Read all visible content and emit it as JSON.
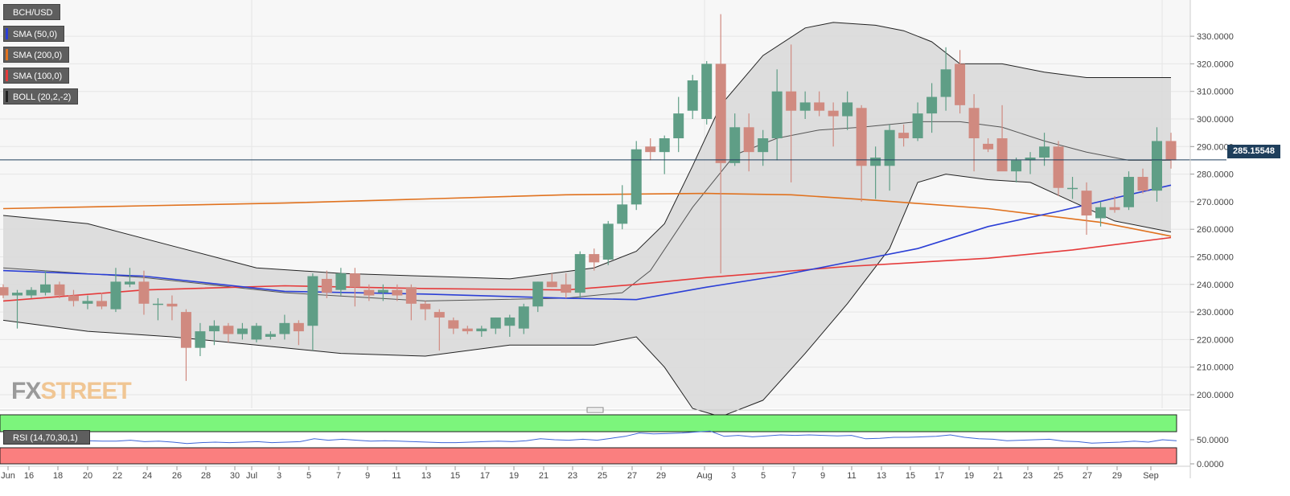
{
  "legend": {
    "pair": "BCH/USD",
    "indicators": [
      {
        "label": "SMA (50,0)",
        "color": "#2b3fd6"
      },
      {
        "label": "SMA (200,0)",
        "color": "#e0721f"
      },
      {
        "label": "SMA (100,0)",
        "color": "#e53a3a"
      },
      {
        "label": "BOLL (20,2,-2)",
        "color": "#222222"
      }
    ]
  },
  "logo": {
    "fx": "FX",
    "street": "STREET"
  },
  "last_price": "285.15548",
  "rsi_legend": "RSI (14,70,30,1)",
  "colors": {
    "up": "#5f9e86",
    "down": "#d08a80",
    "band_fill": "#d9d9d9",
    "overbought": "#7cf57c",
    "oversold": "#fa7f7f",
    "rsi_line": "#3d66d6"
  },
  "chart_data": {
    "type": "candlestick",
    "pair": "BCH/USD",
    "y_ticks": [
      "330.0000",
      "320.0000",
      "310.0000",
      "300.0000",
      "290.0000",
      "280.0000",
      "270.0000",
      "260.0000",
      "250.0000",
      "240.0000",
      "230.0000",
      "220.0000",
      "210.0000",
      "200.0000"
    ],
    "ylim": [
      192,
      338
    ],
    "x_ticks": [
      "Jun",
      "16",
      "18",
      "20",
      "22",
      "24",
      "26",
      "28",
      "30",
      "Jul",
      "3",
      "5",
      "7",
      "9",
      "11",
      "13",
      "15",
      "17",
      "19",
      "21",
      "23",
      "25",
      "27",
      "29",
      "Aug",
      "3",
      "5",
      "7",
      "9",
      "11",
      "13",
      "15",
      "17",
      "19",
      "21",
      "23",
      "25",
      "27",
      "29",
      "Sep"
    ],
    "candles": [
      {
        "o": 239,
        "h": 240,
        "l": 235,
        "c": 236
      },
      {
        "o": 236,
        "h": 238,
        "l": 224,
        "c": 237
      },
      {
        "o": 236,
        "h": 239,
        "l": 235,
        "c": 238
      },
      {
        "o": 237,
        "h": 245,
        "l": 236,
        "c": 240
      },
      {
        "o": 240,
        "h": 241,
        "l": 235,
        "c": 236
      },
      {
        "o": 236,
        "h": 238,
        "l": 232,
        "c": 234
      },
      {
        "o": 233,
        "h": 236,
        "l": 231,
        "c": 234
      },
      {
        "o": 234,
        "h": 237,
        "l": 231,
        "c": 232
      },
      {
        "o": 231,
        "h": 246,
        "l": 230,
        "c": 241
      },
      {
        "o": 240,
        "h": 246,
        "l": 239,
        "c": 241
      },
      {
        "o": 241,
        "h": 245,
        "l": 229,
        "c": 233
      },
      {
        "o": 233,
        "h": 235,
        "l": 227,
        "c": 233
      },
      {
        "o": 233,
        "h": 236,
        "l": 227,
        "c": 232
      },
      {
        "o": 230,
        "h": 231,
        "l": 205,
        "c": 217
      },
      {
        "o": 217,
        "h": 226,
        "l": 214,
        "c": 223
      },
      {
        "o": 223,
        "h": 227,
        "l": 218,
        "c": 225
      },
      {
        "o": 225,
        "h": 226,
        "l": 219,
        "c": 222
      },
      {
        "o": 222,
        "h": 226,
        "l": 220,
        "c": 224
      },
      {
        "o": 220,
        "h": 226,
        "l": 219,
        "c": 225
      },
      {
        "o": 221,
        "h": 223,
        "l": 220,
        "c": 222
      },
      {
        "o": 222,
        "h": 229,
        "l": 220,
        "c": 226
      },
      {
        "o": 226,
        "h": 227,
        "l": 218,
        "c": 223
      },
      {
        "o": 225,
        "h": 244,
        "l": 216,
        "c": 243
      },
      {
        "o": 242,
        "h": 245,
        "l": 235,
        "c": 237
      },
      {
        "o": 238,
        "h": 246,
        "l": 236,
        "c": 244
      },
      {
        "o": 244,
        "h": 246,
        "l": 232,
        "c": 239
      },
      {
        "o": 238,
        "h": 240,
        "l": 234,
        "c": 236
      },
      {
        "o": 237,
        "h": 240,
        "l": 234,
        "c": 238
      },
      {
        "o": 238,
        "h": 240,
        "l": 234,
        "c": 236
      },
      {
        "o": 239,
        "h": 240,
        "l": 227,
        "c": 233
      },
      {
        "o": 233,
        "h": 234,
        "l": 227,
        "c": 231
      },
      {
        "o": 230,
        "h": 231,
        "l": 216,
        "c": 228
      },
      {
        "o": 227,
        "h": 228,
        "l": 222,
        "c": 224
      },
      {
        "o": 224,
        "h": 225,
        "l": 222,
        "c": 223
      },
      {
        "o": 223,
        "h": 225,
        "l": 221,
        "c": 224
      },
      {
        "o": 224,
        "h": 228,
        "l": 222,
        "c": 228
      },
      {
        "o": 225,
        "h": 229,
        "l": 221,
        "c": 228
      },
      {
        "o": 224,
        "h": 233,
        "l": 222,
        "c": 232
      },
      {
        "o": 232,
        "h": 241,
        "l": 230,
        "c": 241
      },
      {
        "o": 241,
        "h": 244,
        "l": 239,
        "c": 239
      },
      {
        "o": 240,
        "h": 244,
        "l": 235,
        "c": 237
      },
      {
        "o": 237,
        "h": 252,
        "l": 235,
        "c": 251
      },
      {
        "o": 251,
        "h": 253,
        "l": 245,
        "c": 248
      },
      {
        "o": 249,
        "h": 263,
        "l": 247,
        "c": 262
      },
      {
        "o": 262,
        "h": 276,
        "l": 260,
        "c": 269
      },
      {
        "o": 269,
        "h": 292,
        "l": 267,
        "c": 289
      },
      {
        "o": 290,
        "h": 293,
        "l": 285,
        "c": 288
      },
      {
        "o": 288,
        "h": 294,
        "l": 280,
        "c": 293
      },
      {
        "o": 293,
        "h": 308,
        "l": 288,
        "c": 302
      },
      {
        "o": 303,
        "h": 316,
        "l": 300,
        "c": 314
      },
      {
        "o": 300,
        "h": 321,
        "l": 298,
        "c": 320
      },
      {
        "o": 320,
        "h": 338,
        "l": 244,
        "c": 284
      },
      {
        "o": 284,
        "h": 302,
        "l": 283,
        "c": 297
      },
      {
        "o": 297,
        "h": 302,
        "l": 281,
        "c": 288
      },
      {
        "o": 288,
        "h": 296,
        "l": 283,
        "c": 293
      },
      {
        "o": 293,
        "h": 318,
        "l": 285,
        "c": 310
      },
      {
        "o": 310,
        "h": 327,
        "l": 277,
        "c": 303
      },
      {
        "o": 303,
        "h": 310,
        "l": 300,
        "c": 306
      },
      {
        "o": 306,
        "h": 310,
        "l": 301,
        "c": 303
      },
      {
        "o": 303,
        "h": 306,
        "l": 290,
        "c": 301
      },
      {
        "o": 301,
        "h": 310,
        "l": 296,
        "c": 306
      },
      {
        "o": 304,
        "h": 305,
        "l": 270,
        "c": 283
      },
      {
        "o": 283,
        "h": 290,
        "l": 271,
        "c": 286
      },
      {
        "o": 283,
        "h": 298,
        "l": 274,
        "c": 296
      },
      {
        "o": 295,
        "h": 298,
        "l": 290,
        "c": 293
      },
      {
        "o": 293,
        "h": 306,
        "l": 292,
        "c": 302
      },
      {
        "o": 302,
        "h": 313,
        "l": 295,
        "c": 308
      },
      {
        "o": 308,
        "h": 326,
        "l": 303,
        "c": 318
      },
      {
        "o": 320,
        "h": 325,
        "l": 302,
        "c": 305
      },
      {
        "o": 304,
        "h": 309,
        "l": 281,
        "c": 293
      },
      {
        "o": 291,
        "h": 293,
        "l": 288,
        "c": 289
      },
      {
        "o": 293,
        "h": 305,
        "l": 282,
        "c": 281
      },
      {
        "o": 281,
        "h": 286,
        "l": 277,
        "c": 285
      },
      {
        "o": 285,
        "h": 288,
        "l": 280,
        "c": 286
      },
      {
        "o": 286,
        "h": 295,
        "l": 283,
        "c": 290
      },
      {
        "o": 290,
        "h": 292,
        "l": 272,
        "c": 275
      },
      {
        "o": 275,
        "h": 279,
        "l": 271,
        "c": 275
      },
      {
        "o": 274,
        "h": 277,
        "l": 258,
        "c": 265
      },
      {
        "o": 264,
        "h": 270,
        "l": 261,
        "c": 268
      },
      {
        "o": 268,
        "h": 272,
        "l": 266,
        "c": 267
      },
      {
        "o": 268,
        "h": 281,
        "l": 267,
        "c": 279
      },
      {
        "o": 279,
        "h": 282,
        "l": 273,
        "c": 274
      },
      {
        "o": 274,
        "h": 297,
        "l": 270,
        "c": 292
      },
      {
        "o": 292,
        "h": 295,
        "l": 282,
        "c": 285
      }
    ],
    "series": [
      {
        "name": "SMA (50,0)",
        "points": [
          [
            0,
            245
          ],
          [
            10,
            243
          ],
          [
            20,
            237.5
          ],
          [
            30,
            236.5
          ],
          [
            40,
            235
          ],
          [
            45,
            234.5
          ],
          [
            50,
            239
          ],
          [
            55,
            243
          ],
          [
            60,
            248
          ],
          [
            65,
            253
          ],
          [
            70,
            261
          ],
          [
            75,
            266.5
          ],
          [
            80,
            272.5
          ],
          [
            83,
            276
          ]
        ]
      },
      {
        "name": "SMA (200,0)",
        "points": [
          [
            0,
            267.5
          ],
          [
            10,
            268.5
          ],
          [
            20,
            269.5
          ],
          [
            30,
            271
          ],
          [
            40,
            272.5
          ],
          [
            50,
            273
          ],
          [
            56,
            272.5
          ],
          [
            62,
            270.5
          ],
          [
            70,
            267.5
          ],
          [
            78,
            262.5
          ],
          [
            83,
            257.5
          ]
        ]
      },
      {
        "name": "SMA (100,0)",
        "points": [
          [
            0,
            234
          ],
          [
            10,
            238
          ],
          [
            20,
            239.5
          ],
          [
            30,
            238.5
          ],
          [
            40,
            238
          ],
          [
            45,
            240
          ],
          [
            50,
            242.5
          ],
          [
            60,
            246.5
          ],
          [
            70,
            249.5
          ],
          [
            76,
            252.5
          ],
          [
            83,
            257
          ]
        ]
      },
      {
        "name": "BOLL (20,2,-2)",
        "points": [
          [
            0,
            246
          ],
          [
            10,
            242.5
          ],
          [
            20,
            237
          ],
          [
            30,
            234
          ],
          [
            40,
            235
          ],
          [
            44,
            237
          ],
          [
            46,
            245
          ],
          [
            49,
            268
          ],
          [
            52,
            287
          ],
          [
            55,
            293
          ],
          [
            58,
            296
          ],
          [
            61,
            297
          ],
          [
            65,
            299
          ],
          [
            68,
            299
          ],
          [
            71,
            297
          ],
          [
            74,
            292
          ],
          [
            77,
            288
          ],
          [
            80,
            285
          ],
          [
            83,
            285
          ]
        ]
      },
      {
        "name": "Bollinger upper",
        "points": [
          [
            0,
            265
          ],
          [
            6,
            262
          ],
          [
            12,
            254
          ],
          [
            18,
            246
          ],
          [
            24,
            244
          ],
          [
            30,
            243
          ],
          [
            36,
            242
          ],
          [
            42,
            246
          ],
          [
            45,
            252
          ],
          [
            47,
            262
          ],
          [
            49,
            283
          ],
          [
            51,
            305
          ],
          [
            54,
            323
          ],
          [
            57,
            333
          ],
          [
            59,
            335
          ],
          [
            62,
            334
          ],
          [
            64,
            332
          ],
          [
            66,
            328
          ],
          [
            68,
            320
          ],
          [
            71,
            320
          ],
          [
            74,
            317
          ],
          [
            77,
            315
          ],
          [
            80,
            315
          ],
          [
            83,
            315
          ]
        ]
      },
      {
        "name": "Bollinger lower",
        "points": [
          [
            0,
            227
          ],
          [
            6,
            223
          ],
          [
            12,
            221
          ],
          [
            18,
            218
          ],
          [
            24,
            215
          ],
          [
            30,
            214
          ],
          [
            36,
            218
          ],
          [
            42,
            218
          ],
          [
            45,
            221
          ],
          [
            47,
            210
          ],
          [
            49,
            195
          ],
          [
            51,
            192
          ],
          [
            54,
            198
          ],
          [
            57,
            215
          ],
          [
            60,
            233
          ],
          [
            63,
            253
          ],
          [
            65,
            277
          ],
          [
            67,
            280
          ],
          [
            70,
            278
          ],
          [
            73,
            277
          ],
          [
            76,
            270
          ],
          [
            79,
            263
          ],
          [
            83,
            259
          ]
        ]
      }
    ],
    "rsi": {
      "label": "RSI (14,70,30,1)",
      "y_ticks": [
        "50.0000",
        "0.0000"
      ],
      "overbought": 70,
      "oversold": 30,
      "values": [
        47,
        45,
        47,
        49,
        45,
        46,
        48,
        47,
        47,
        49,
        46,
        47,
        45,
        42,
        44,
        45,
        44,
        45,
        46,
        44,
        45,
        46,
        52,
        49,
        51,
        49,
        47,
        48,
        47,
        46,
        45,
        44,
        44,
        45,
        46,
        47,
        46,
        48,
        52,
        50,
        49,
        51,
        49,
        53,
        57,
        64,
        62,
        63,
        64,
        66,
        68,
        57,
        59,
        56,
        58,
        60,
        59,
        60,
        59,
        58,
        59,
        52,
        53,
        55,
        55,
        56,
        57,
        60,
        55,
        52,
        51,
        48,
        49,
        50,
        51,
        47,
        46,
        43,
        44,
        45,
        47,
        45,
        50,
        48
      ]
    }
  }
}
